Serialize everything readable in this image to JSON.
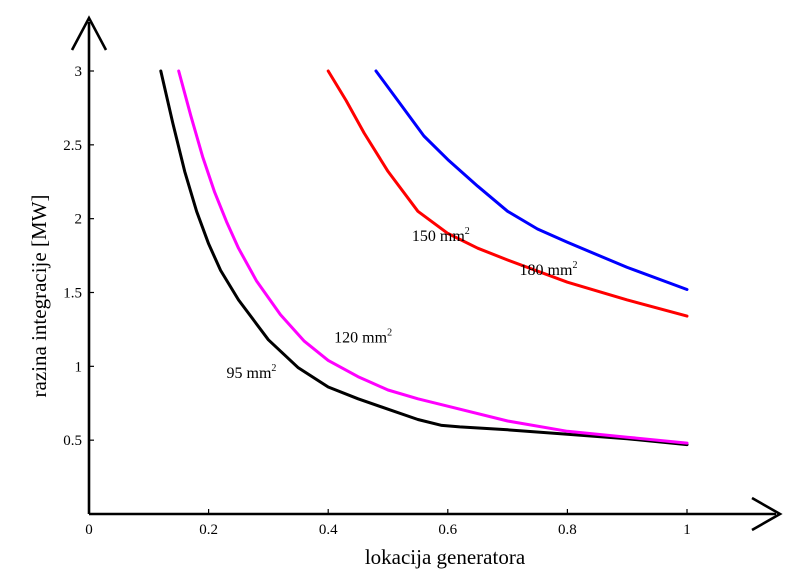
{
  "chart_data": {
    "type": "line",
    "xlabel": "lokacija generatora",
    "ylabel": "razina integracije [MW]",
    "xlim": [
      0,
      1.15
    ],
    "ylim": [
      0,
      3.2
    ],
    "x_ticks": [
      0,
      0.2,
      0.4,
      0.6,
      0.8,
      1
    ],
    "x_tick_labels": [
      "0",
      "0.2",
      "0.4",
      "0.6",
      "0.8",
      "1"
    ],
    "y_ticks": [
      0.5,
      1,
      1.5,
      2,
      2.5,
      3
    ],
    "y_tick_labels": [
      "0.5",
      "1",
      "1.5",
      "2",
      "2.5",
      "3"
    ],
    "grid": false,
    "legend": "none",
    "series": [
      {
        "name": "95 mm",
        "superscript": "2",
        "color": "#000000",
        "label_at": [
          0.23,
          0.92
        ],
        "x": [
          0.12,
          0.14,
          0.16,
          0.18,
          0.2,
          0.22,
          0.25,
          0.3,
          0.35,
          0.4,
          0.45,
          0.5,
          0.55,
          0.59,
          0.62,
          0.7,
          0.8,
          0.9,
          1.0
        ],
        "y": [
          3.0,
          2.65,
          2.32,
          2.05,
          1.83,
          1.65,
          1.45,
          1.18,
          0.99,
          0.86,
          0.78,
          0.71,
          0.64,
          0.6,
          0.59,
          0.57,
          0.54,
          0.51,
          0.47
        ]
      },
      {
        "name": "120 mm",
        "superscript": "2",
        "color": "#ff00ff",
        "label_at": [
          0.41,
          1.16
        ],
        "x": [
          0.15,
          0.17,
          0.19,
          0.21,
          0.23,
          0.25,
          0.28,
          0.32,
          0.36,
          0.4,
          0.45,
          0.5,
          0.55,
          0.6,
          0.7,
          0.8,
          0.9,
          1.0
        ],
        "y": [
          3.0,
          2.7,
          2.42,
          2.18,
          1.98,
          1.8,
          1.58,
          1.35,
          1.17,
          1.04,
          0.93,
          0.84,
          0.78,
          0.73,
          0.63,
          0.56,
          0.52,
          0.48
        ]
      },
      {
        "name": "150 mm",
        "superscript": "2",
        "color": "#ff0000",
        "label_at": [
          0.54,
          1.85
        ],
        "x": [
          0.4,
          0.43,
          0.46,
          0.5,
          0.55,
          0.6,
          0.65,
          0.7,
          0.8,
          0.9,
          1.0
        ],
        "y": [
          3.0,
          2.8,
          2.58,
          2.32,
          2.05,
          1.9,
          1.8,
          1.72,
          1.57,
          1.45,
          1.34
        ]
      },
      {
        "name": "180 mm",
        "superscript": "2",
        "color": "#0000ff",
        "label_at": [
          0.72,
          1.62
        ],
        "x": [
          0.48,
          0.52,
          0.56,
          0.6,
          0.65,
          0.7,
          0.75,
          0.8,
          0.9,
          1.0
        ],
        "y": [
          3.0,
          2.78,
          2.56,
          2.4,
          2.22,
          2.05,
          1.93,
          1.84,
          1.67,
          1.52
        ]
      }
    ]
  }
}
